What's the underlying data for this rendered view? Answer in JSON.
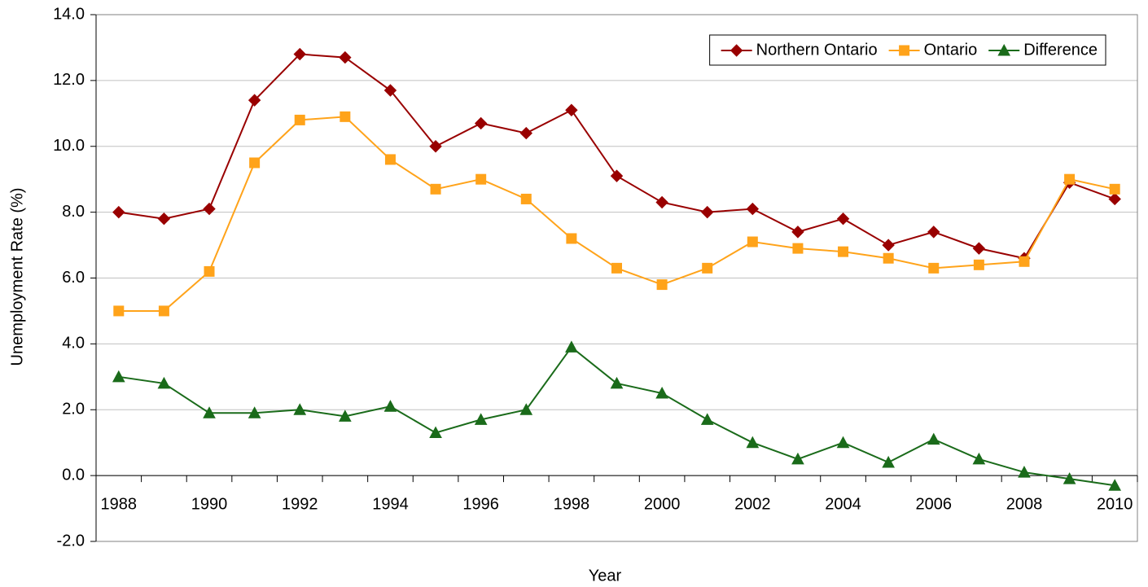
{
  "chart_data": {
    "type": "line",
    "x_label": "Year",
    "y_label": "Unemployment Rate (%)",
    "categories": [
      "1988",
      null,
      "1990",
      null,
      "1992",
      null,
      "1994",
      null,
      "1996",
      null,
      "1998",
      null,
      "2000",
      null,
      "2002",
      null,
      "2004",
      null,
      "2006",
      null,
      "2008",
      null,
      "2010"
    ],
    "ylim": [
      -2,
      14
    ],
    "yticks": [
      {
        "value": -2,
        "label": "-2.0"
      },
      {
        "value": 0,
        "label": "0.0"
      },
      {
        "value": 2,
        "label": "2.0"
      },
      {
        "value": 4,
        "label": "4.0"
      },
      {
        "value": 6,
        "label": "6.0"
      },
      {
        "value": 8,
        "label": "8.0"
      },
      {
        "value": 10,
        "label": "10.0"
      },
      {
        "value": 12,
        "label": "12.0"
      },
      {
        "value": 14,
        "label": "14.0"
      }
    ],
    "grid": true,
    "legend": "top-right",
    "series": [
      {
        "name": "Northern Ontario",
        "color": "#990000",
        "marker": "diamond",
        "values": [
          8.0,
          7.8,
          8.1,
          11.4,
          12.8,
          12.7,
          11.7,
          10.0,
          10.7,
          10.4,
          11.1,
          9.1,
          8.3,
          8.0,
          8.1,
          7.4,
          7.8,
          7.0,
          7.4,
          6.9,
          6.6,
          8.9,
          8.4
        ]
      },
      {
        "name": "Ontario",
        "color": "#ffa31a",
        "marker": "square",
        "values": [
          5.0,
          5.0,
          6.2,
          9.5,
          10.8,
          10.9,
          9.6,
          8.7,
          9.0,
          8.4,
          7.2,
          6.3,
          5.8,
          6.3,
          7.1,
          6.9,
          6.8,
          6.6,
          6.3,
          6.4,
          6.5,
          9.0,
          8.7
        ]
      },
      {
        "name": "Difference",
        "color": "#1a6b1a",
        "marker": "triangle",
        "values": [
          3.0,
          2.8,
          1.9,
          1.9,
          2.0,
          1.8,
          2.1,
          1.3,
          1.7,
          2.0,
          3.9,
          2.8,
          2.5,
          1.7,
          1.0,
          0.5,
          1.0,
          0.4,
          1.1,
          0.5,
          0.1,
          -0.1,
          -0.3
        ]
      }
    ]
  }
}
